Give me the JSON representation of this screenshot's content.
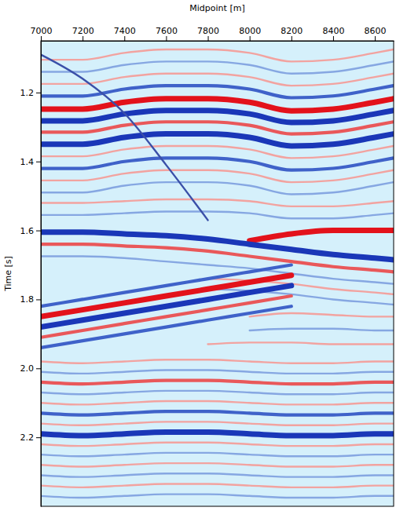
{
  "chart_data": {
    "type": "line",
    "x_label": "Midpoint [m]",
    "y_label": "Time [s]",
    "x": [
      7000,
      7200,
      7400,
      7600,
      7800,
      8000,
      8200,
      8400,
      8600,
      8690
    ],
    "xlim": [
      7000,
      8690
    ],
    "xticks": [
      7000,
      7200,
      7400,
      7600,
      7800,
      8000,
      8200,
      8400,
      8600
    ],
    "ylim": [
      2.4,
      1.05
    ],
    "yticks": [
      1.2,
      1.4,
      1.6,
      1.8,
      {
        "value": 2,
        "label": "2.0"
      },
      2.2
    ],
    "grid": false,
    "series": [
      {
        "color": "#f2a3a0",
        "line_style": "thin",
        "values": [
          1.105,
          1.105,
          1.085,
          1.075,
          1.075,
          1.085,
          1.11,
          1.105,
          1.085,
          1.075
        ]
      },
      {
        "color": "#86a7e2",
        "line_style": "thin",
        "values": [
          1.14,
          1.14,
          1.12,
          1.11,
          1.11,
          1.12,
          1.145,
          1.14,
          1.12,
          1.11
        ]
      },
      {
        "color": "#f2a3a0",
        "line_style": "thin",
        "values": [
          1.175,
          1.175,
          1.155,
          1.145,
          1.145,
          1.155,
          1.18,
          1.175,
          1.155,
          1.145
        ]
      },
      {
        "color": "#3f62c9",
        "line_style": "medium",
        "values": [
          1.21,
          1.21,
          1.19,
          1.18,
          1.18,
          1.19,
          1.215,
          1.21,
          1.19,
          1.18
        ]
      },
      {
        "color": "#e3121b",
        "line_style": "thick",
        "values": [
          1.248,
          1.248,
          1.228,
          1.218,
          1.218,
          1.228,
          1.253,
          1.248,
          1.228,
          1.218
        ]
      },
      {
        "color": "#1a37b8",
        "line_style": "thick",
        "values": [
          1.282,
          1.282,
          1.262,
          1.252,
          1.252,
          1.262,
          1.287,
          1.282,
          1.262,
          1.252
        ]
      },
      {
        "color": "#e9585a",
        "line_style": "medium",
        "values": [
          1.315,
          1.315,
          1.295,
          1.285,
          1.285,
          1.295,
          1.32,
          1.315,
          1.295,
          1.285
        ]
      },
      {
        "color": "#1a37b8",
        "line_style": "thick",
        "values": [
          1.35,
          1.35,
          1.33,
          1.32,
          1.32,
          1.33,
          1.355,
          1.35,
          1.33,
          1.32
        ]
      },
      {
        "color": "#f2a3a0",
        "line_style": "thin",
        "values": [
          1.385,
          1.385,
          1.365,
          1.355,
          1.355,
          1.365,
          1.39,
          1.385,
          1.365,
          1.355
        ]
      },
      {
        "color": "#3f62c9",
        "line_style": "medium",
        "values": [
          1.42,
          1.42,
          1.4,
          1.39,
          1.39,
          1.4,
          1.425,
          1.42,
          1.4,
          1.39
        ]
      },
      {
        "color": "#f2a3a0",
        "line_style": "thin",
        "values": [
          1.455,
          1.455,
          1.435,
          1.425,
          1.425,
          1.435,
          1.46,
          1.455,
          1.435,
          1.425
        ]
      },
      {
        "color": "#86a7e2",
        "line_style": "thin",
        "values": [
          1.49,
          1.49,
          1.47,
          1.46,
          1.46,
          1.47,
          1.495,
          1.49,
          1.47,
          1.46
        ]
      },
      {
        "color": "#f2a3a0",
        "line_style": "thin",
        "values": [
          1.52,
          1.52,
          1.515,
          1.51,
          1.51,
          1.515,
          1.53,
          1.53,
          1.52,
          1.515
        ]
      },
      {
        "color": "#86a7e2",
        "line_style": "thin",
        "values": [
          1.555,
          1.555,
          1.55,
          1.545,
          1.545,
          1.55,
          1.565,
          1.565,
          1.555,
          1.55
        ]
      },
      {
        "color": "#e3121b",
        "line_style": "thick",
        "values": [
          null,
          null,
          null,
          null,
          null,
          1.63,
          1.61,
          1.6,
          1.6,
          1.6
        ]
      },
      {
        "color": "#1a37b8",
        "line_style": "thick",
        "values": [
          1.605,
          1.605,
          1.61,
          1.615,
          1.625,
          1.64,
          1.655,
          1.67,
          1.68,
          1.685
        ]
      },
      {
        "color": "#e9585a",
        "line_style": "medium",
        "values": [
          1.64,
          1.64,
          1.645,
          1.65,
          1.66,
          1.675,
          1.69,
          1.705,
          1.715,
          1.72
        ]
      },
      {
        "color": "#86a7e2",
        "line_style": "thin",
        "values": [
          1.675,
          1.675,
          1.68,
          1.69,
          1.7,
          1.71,
          1.725,
          1.74,
          1.75,
          1.755
        ]
      },
      {
        "color": "#f2a3a0",
        "line_style": "thin",
        "values": [
          null,
          null,
          null,
          null,
          1.74,
          1.745,
          1.755,
          1.77,
          1.78,
          1.785
        ]
      },
      {
        "color": "#86a7e2",
        "line_style": "thin",
        "values": [
          null,
          null,
          null,
          null,
          1.77,
          1.775,
          1.785,
          1.8,
          1.81,
          1.815
        ]
      },
      {
        "color": "#f2a3a0",
        "line_style": "thin",
        "values": [
          null,
          null,
          null,
          null,
          null,
          1.85,
          1.84,
          1.845,
          1.85,
          1.85
        ]
      },
      {
        "color": "#86a7e2",
        "line_style": "thin",
        "values": [
          null,
          null,
          null,
          null,
          null,
          1.89,
          1.885,
          1.885,
          1.89,
          1.89
        ]
      },
      {
        "color": "#f2a3a0",
        "line_style": "thin",
        "values": [
          null,
          null,
          null,
          null,
          1.93,
          1.925,
          1.925,
          1.93,
          1.93,
          1.93
        ]
      },
      {
        "color": "#3f62c9",
        "line_style": "medium",
        "values": [
          1.82,
          1.8,
          1.78,
          1.76,
          1.74,
          1.72,
          1.7,
          null,
          null,
          null
        ]
      },
      {
        "color": "#e3121b",
        "line_style": "thick",
        "values": [
          1.85,
          1.83,
          1.81,
          1.79,
          1.77,
          1.75,
          1.73,
          null,
          null,
          null
        ]
      },
      {
        "color": "#1a37b8",
        "line_style": "thick",
        "values": [
          1.88,
          1.86,
          1.84,
          1.82,
          1.8,
          1.78,
          1.76,
          null,
          null,
          null
        ]
      },
      {
        "color": "#e9585a",
        "line_style": "medium",
        "values": [
          1.91,
          1.89,
          1.87,
          1.85,
          1.83,
          1.81,
          1.79,
          null,
          null,
          null
        ]
      },
      {
        "color": "#3f62c9",
        "line_style": "medium",
        "values": [
          1.94,
          1.92,
          1.9,
          1.88,
          1.86,
          1.84,
          1.82,
          null,
          null,
          null
        ]
      },
      {
        "color": "#f2a3a0",
        "line_style": "thin",
        "values": [
          1.98,
          1.985,
          1.98,
          1.975,
          1.975,
          1.98,
          1.985,
          1.985,
          1.98,
          1.98
        ]
      },
      {
        "color": "#86a7e2",
        "line_style": "thin",
        "values": [
          2.01,
          2.015,
          2.01,
          2.005,
          2.005,
          2.01,
          2.015,
          2.015,
          2.01,
          2.01
        ]
      },
      {
        "color": "#e9585a",
        "line_style": "medium",
        "values": [
          2.04,
          2.045,
          2.04,
          2.035,
          2.035,
          2.04,
          2.045,
          2.045,
          2.04,
          2.04
        ]
      },
      {
        "color": "#86a7e2",
        "line_style": "thin",
        "values": [
          2.07,
          2.075,
          2.07,
          2.065,
          2.065,
          2.07,
          2.075,
          2.075,
          2.07,
          2.07
        ]
      },
      {
        "color": "#f2a3a0",
        "line_style": "thin",
        "values": [
          2.1,
          2.105,
          2.1,
          2.095,
          2.095,
          2.1,
          2.105,
          2.105,
          2.1,
          2.1
        ]
      },
      {
        "color": "#3f62c9",
        "line_style": "medium",
        "values": [
          2.13,
          2.135,
          2.13,
          2.125,
          2.125,
          2.13,
          2.135,
          2.135,
          2.13,
          2.13
        ]
      },
      {
        "color": "#f2a3a0",
        "line_style": "thin",
        "values": [
          2.16,
          2.165,
          2.16,
          2.155,
          2.155,
          2.16,
          2.165,
          2.165,
          2.16,
          2.16
        ]
      },
      {
        "color": "#1a37b8",
        "line_style": "thick",
        "values": [
          2.19,
          2.195,
          2.19,
          2.185,
          2.185,
          2.19,
          2.195,
          2.195,
          2.19,
          2.19
        ]
      },
      {
        "color": "#f2a3a0",
        "line_style": "thin",
        "values": [
          2.22,
          2.225,
          2.22,
          2.215,
          2.215,
          2.22,
          2.225,
          2.225,
          2.22,
          2.22
        ]
      },
      {
        "color": "#86a7e2",
        "line_style": "thin",
        "values": [
          2.25,
          2.255,
          2.25,
          2.245,
          2.245,
          2.25,
          2.255,
          2.255,
          2.25,
          2.25
        ]
      },
      {
        "color": "#f2a3a0",
        "line_style": "thin",
        "values": [
          2.28,
          2.285,
          2.28,
          2.275,
          2.275,
          2.28,
          2.285,
          2.285,
          2.28,
          2.28
        ]
      },
      {
        "color": "#86a7e2",
        "line_style": "thin",
        "values": [
          2.31,
          2.315,
          2.31,
          2.305,
          2.305,
          2.31,
          2.315,
          2.315,
          2.31,
          2.31
        ]
      },
      {
        "color": "#f2a3a0",
        "line_style": "thin",
        "values": [
          2.34,
          2.345,
          2.34,
          2.335,
          2.335,
          2.34,
          2.345,
          2.345,
          2.34,
          2.34
        ]
      },
      {
        "color": "#86a7e2",
        "line_style": "thin",
        "values": [
          2.37,
          2.375,
          2.37,
          2.365,
          2.365,
          2.37,
          2.375,
          2.375,
          2.37,
          2.37
        ]
      },
      {
        "color": "#3a4fa8",
        "line_style": "thin",
        "values": [
          1.09,
          1.16,
          1.26,
          1.41,
          1.57,
          null,
          null,
          null,
          null,
          null
        ]
      }
    ]
  }
}
